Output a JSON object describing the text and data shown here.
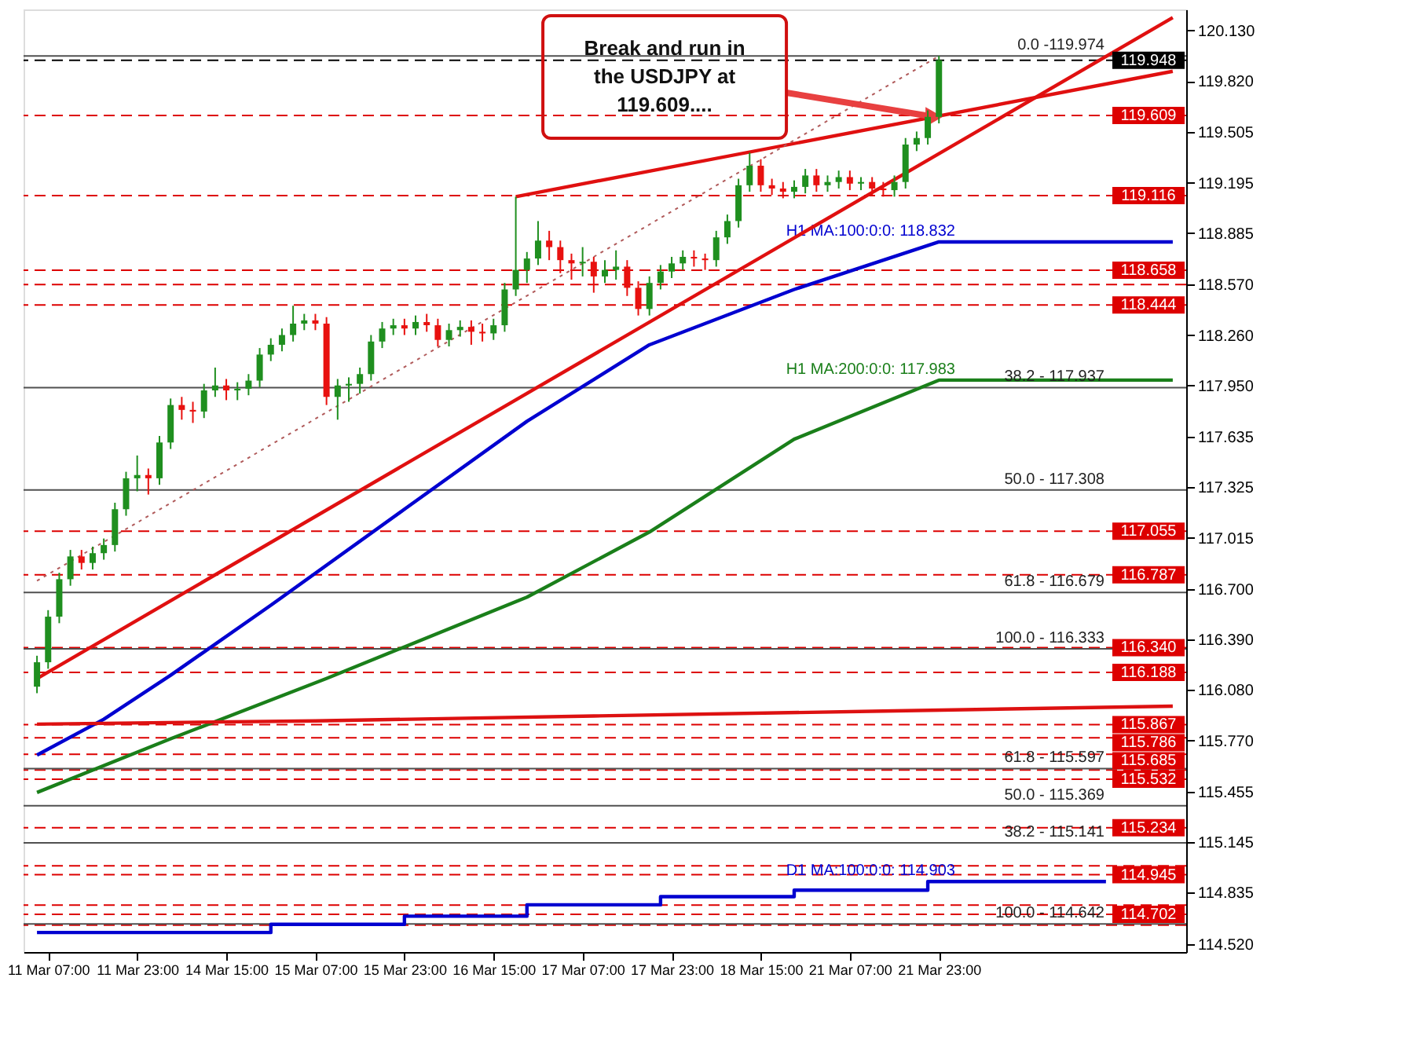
{
  "chart_data": {
    "type": "candlestick",
    "categories": [
      null,
      "11 Mar 07:00",
      null,
      null,
      null,
      null,
      null,
      null,
      null,
      "11 Mar 23:00",
      null,
      null,
      null,
      null,
      null,
      null,
      null,
      "14 Mar 15:00",
      null,
      null,
      null,
      null,
      null,
      null,
      null,
      "15 Mar 07:00",
      null,
      null,
      null,
      null,
      null,
      null,
      null,
      "15 Mar 23:00",
      null,
      null,
      null,
      null,
      null,
      null,
      null,
      "16 Mar 15:00",
      null,
      null,
      null,
      null,
      null,
      null,
      null,
      "17 Mar 07:00",
      null,
      null,
      null,
      null,
      null,
      null,
      null,
      "17 Mar 23:00",
      null,
      null,
      null,
      null,
      null,
      null,
      null,
      "18 Mar 15:00",
      null,
      null,
      null,
      null,
      null,
      null,
      null,
      "21 Mar 07:00",
      null,
      null,
      null,
      null,
      null,
      null,
      null,
      "21 Mar 23:00",
      null,
      null,
      null,
      null,
      null,
      null,
      null,
      null,
      null,
      null,
      null,
      null,
      null,
      null,
      null,
      null,
      null,
      null,
      null,
      null,
      null
    ],
    "ohlc": [
      [
        116.1,
        116.29,
        116.06,
        116.25
      ],
      [
        116.25,
        116.57,
        116.21,
        116.53
      ],
      [
        116.53,
        116.8,
        116.49,
        116.76
      ],
      [
        116.76,
        116.94,
        116.72,
        116.9
      ],
      [
        116.9,
        116.94,
        116.82,
        116.86
      ],
      [
        116.86,
        116.96,
        116.82,
        116.92
      ],
      [
        116.92,
        117.01,
        116.88,
        116.97
      ],
      [
        116.97,
        117.23,
        116.93,
        117.19
      ],
      [
        117.19,
        117.42,
        117.15,
        117.38
      ],
      [
        117.38,
        117.52,
        117.3,
        117.4
      ],
      [
        117.4,
        117.44,
        117.28,
        117.38
      ],
      [
        117.38,
        117.64,
        117.34,
        117.6
      ],
      [
        117.6,
        117.87,
        117.56,
        117.83
      ],
      [
        117.83,
        117.88,
        117.74,
        117.8
      ],
      [
        117.8,
        117.85,
        117.72,
        117.79
      ],
      [
        117.79,
        117.96,
        117.75,
        117.92
      ],
      [
        117.92,
        118.06,
        117.88,
        117.95
      ],
      [
        117.95,
        117.99,
        117.86,
        117.92
      ],
      [
        117.92,
        117.97,
        117.86,
        117.93
      ],
      [
        117.93,
        118.02,
        117.89,
        117.98
      ],
      [
        117.98,
        118.18,
        117.94,
        118.14
      ],
      [
        118.14,
        118.24,
        118.1,
        118.2
      ],
      [
        118.2,
        118.3,
        118.16,
        118.26
      ],
      [
        118.26,
        118.44,
        118.22,
        118.33
      ],
      [
        118.33,
        118.39,
        118.29,
        118.35
      ],
      [
        118.35,
        118.39,
        118.29,
        118.33
      ],
      [
        118.33,
        118.37,
        117.83,
        117.88
      ],
      [
        117.88,
        117.99,
        117.74,
        117.95
      ],
      [
        117.95,
        118.0,
        117.85,
        117.96
      ],
      [
        117.96,
        118.06,
        117.9,
        118.02
      ],
      [
        118.02,
        118.26,
        117.98,
        118.22
      ],
      [
        118.22,
        118.34,
        118.18,
        118.3
      ],
      [
        118.3,
        118.36,
        118.26,
        118.32
      ],
      [
        118.32,
        118.36,
        118.26,
        118.3
      ],
      [
        118.3,
        118.38,
        118.26,
        118.34
      ],
      [
        118.34,
        118.39,
        118.28,
        118.32
      ],
      [
        118.32,
        118.36,
        118.19,
        118.23
      ],
      [
        118.23,
        118.33,
        118.19,
        118.29
      ],
      [
        118.29,
        118.35,
        118.25,
        118.31
      ],
      [
        118.31,
        118.35,
        118.2,
        118.28
      ],
      [
        118.28,
        118.33,
        118.22,
        118.27
      ],
      [
        118.27,
        118.36,
        118.23,
        118.32
      ],
      [
        118.32,
        118.58,
        118.28,
        118.54
      ],
      [
        118.54,
        119.11,
        118.5,
        118.66
      ],
      [
        118.66,
        118.77,
        118.58,
        118.73
      ],
      [
        118.73,
        118.96,
        118.69,
        118.84
      ],
      [
        118.84,
        118.9,
        118.72,
        118.8
      ],
      [
        118.8,
        118.84,
        118.64,
        118.72
      ],
      [
        118.72,
        118.76,
        118.6,
        118.7
      ],
      [
        118.7,
        118.8,
        118.62,
        118.71
      ],
      [
        118.71,
        118.74,
        118.52,
        118.62
      ],
      [
        118.62,
        118.72,
        118.58,
        118.66
      ],
      [
        118.66,
        118.78,
        118.6,
        118.68
      ],
      [
        118.68,
        118.72,
        118.5,
        118.55
      ],
      [
        118.55,
        118.59,
        118.38,
        118.42
      ],
      [
        118.42,
        118.62,
        118.38,
        118.58
      ],
      [
        118.58,
        118.69,
        118.54,
        118.65
      ],
      [
        118.65,
        118.74,
        118.61,
        118.7
      ],
      [
        118.7,
        118.78,
        118.66,
        118.74
      ],
      [
        118.74,
        118.78,
        118.68,
        118.73
      ],
      [
        118.73,
        118.76,
        118.66,
        118.72
      ],
      [
        118.72,
        118.9,
        118.68,
        118.86
      ],
      [
        118.86,
        119.0,
        118.82,
        118.96
      ],
      [
        118.96,
        119.22,
        118.92,
        119.18
      ],
      [
        119.18,
        119.38,
        119.14,
        119.3
      ],
      [
        119.3,
        119.34,
        119.14,
        119.18
      ],
      [
        119.18,
        119.22,
        119.12,
        119.16
      ],
      [
        119.16,
        119.2,
        119.1,
        119.14
      ],
      [
        119.14,
        119.21,
        119.1,
        119.17
      ],
      [
        119.17,
        119.28,
        119.13,
        119.24
      ],
      [
        119.24,
        119.28,
        119.14,
        119.18
      ],
      [
        119.18,
        119.24,
        119.14,
        119.2
      ],
      [
        119.2,
        119.27,
        119.16,
        119.23
      ],
      [
        119.23,
        119.27,
        119.15,
        119.19
      ],
      [
        119.19,
        119.23,
        119.15,
        119.2
      ],
      [
        119.2,
        119.23,
        119.12,
        119.16
      ],
      [
        119.16,
        119.2,
        119.11,
        119.15
      ],
      [
        119.15,
        119.24,
        119.11,
        119.2
      ],
      [
        119.2,
        119.47,
        119.16,
        119.43
      ],
      [
        119.43,
        119.51,
        119.39,
        119.47
      ],
      [
        119.47,
        119.64,
        119.43,
        119.6
      ],
      [
        119.6,
        119.974,
        119.56,
        119.948
      ],
      null,
      null,
      null,
      null,
      null,
      null,
      null,
      null,
      null,
      null,
      null,
      null,
      null,
      null,
      null,
      null,
      null,
      null,
      null,
      null,
      null
    ],
    "colors": [
      "#1f8f1f",
      "#1f8f1f",
      "#1f8f1f",
      "#1f8f1f",
      "#e8110f",
      "#1f8f1f",
      "#1f8f1f",
      "#1f8f1f",
      "#1f8f1f",
      "#1f8f1f",
      "#e8110f",
      "#1f8f1f",
      "#1f8f1f",
      "#e8110f",
      "#e8110f",
      "#1f8f1f",
      "#1f8f1f",
      "#e8110f",
      "#1f8f1f",
      "#1f8f1f",
      "#1f8f1f",
      "#1f8f1f",
      "#1f8f1f",
      "#1f8f1f",
      "#1f8f1f",
      "#e8110f",
      "#e8110f",
      "#1f8f1f",
      "#1f8f1f",
      "#1f8f1f",
      "#1f8f1f",
      "#1f8f1f",
      "#1f8f1f",
      "#e8110f",
      "#1f8f1f",
      "#e8110f",
      "#e8110f",
      "#1f8f1f",
      "#1f8f1f",
      "#e8110f",
      "#e8110f",
      "#1f8f1f",
      "#1f8f1f",
      "#1f8f1f",
      "#1f8f1f",
      "#1f8f1f",
      "#e8110f",
      "#e8110f",
      "#e8110f",
      "#1f8f1f",
      "#e8110f",
      "#1f8f1f",
      "#1f8f1f",
      "#e8110f",
      "#e8110f",
      "#1f8f1f",
      "#1f8f1f",
      "#1f8f1f",
      "#1f8f1f",
      "#e8110f",
      "#e8110f",
      "#1f8f1f",
      "#1f8f1f",
      "#1f8f1f",
      "#1f8f1f",
      "#e8110f",
      "#e8110f",
      "#e8110f",
      "#1f8f1f",
      "#1f8f1f",
      "#e8110f",
      "#1f8f1f",
      "#1f8f1f",
      "#e8110f",
      "#1f8f1f",
      "#e8110f",
      "#e8110f",
      "#1f8f1f",
      "#1f8f1f",
      "#1f8f1f",
      "#1f8f1f",
      "#1f8f1f",
      null,
      null,
      null,
      null,
      null,
      null,
      null,
      null,
      null,
      null,
      null,
      null,
      null,
      null,
      null,
      null,
      null,
      null,
      null,
      null,
      null
    ],
    "series": [
      {
        "name": "H1 MA:100:0:0: 118.832",
        "type": "line",
        "color": "#0000d0",
        "values": [
          115.68,
          null,
          null,
          null,
          null,
          null,
          115.9,
          null,
          null,
          null,
          null,
          null,
          116.17,
          null,
          null,
          null,
          null,
          null,
          null,
          null,
          null,
          116.6,
          null,
          null,
          null,
          null,
          null,
          null,
          null,
          null,
          null,
          null,
          null,
          117.19,
          null,
          null,
          null,
          null,
          null,
          null,
          null,
          null,
          null,
          null,
          117.73,
          null,
          null,
          null,
          null,
          null,
          null,
          null,
          null,
          null,
          null,
          118.2,
          null,
          null,
          null,
          null,
          null,
          null,
          null,
          null,
          null,
          null,
          null,
          null,
          118.54,
          null,
          null,
          null,
          null,
          null,
          null,
          null,
          null,
          null,
          null,
          null,
          null,
          118.832,
          null,
          null,
          null,
          null,
          null,
          null,
          null,
          null,
          null,
          null,
          null,
          null,
          null,
          null,
          null,
          null,
          null,
          null,
          null,
          null,
          118.832
        ]
      },
      {
        "name": "H1 MA:200:0:0: 117.983",
        "type": "line",
        "color": "#1a7f1a",
        "values": [
          115.45,
          null,
          null,
          null,
          null,
          null,
          null,
          null,
          null,
          null,
          null,
          null,
          115.78,
          null,
          null,
          null,
          null,
          null,
          null,
          null,
          null,
          null,
          null,
          null,
          null,
          null,
          116.15,
          null,
          null,
          null,
          null,
          null,
          null,
          null,
          null,
          null,
          null,
          null,
          null,
          null,
          null,
          null,
          null,
          null,
          116.65,
          null,
          null,
          null,
          null,
          null,
          null,
          null,
          null,
          null,
          null,
          117.05,
          null,
          null,
          null,
          null,
          null,
          null,
          null,
          null,
          null,
          null,
          null,
          null,
          117.62,
          null,
          null,
          null,
          null,
          null,
          null,
          null,
          null,
          null,
          null,
          null,
          null,
          117.983,
          null,
          null,
          null,
          null,
          null,
          null,
          null,
          null,
          null,
          null,
          null,
          null,
          null,
          null,
          null,
          null,
          null,
          null,
          null,
          null,
          117.983
        ]
      },
      {
        "type": "line",
        "color": "#dd1111",
        "values": [
          115.87,
          null,
          null,
          null,
          null,
          null,
          null,
          null,
          null,
          null,
          null,
          null,
          null,
          null,
          null,
          null,
          null,
          null,
          null,
          null,
          null,
          null,
          null,
          null,
          null,
          115.89,
          null,
          null,
          null,
          null,
          null,
          null,
          null,
          null,
          null,
          null,
          null,
          null,
          null,
          null,
          null,
          null,
          null,
          null,
          null,
          null,
          null,
          null,
          null,
          null,
          115.92,
          null,
          null,
          null,
          null,
          null,
          null,
          null,
          null,
          null,
          null,
          null,
          null,
          null,
          null,
          null,
          null,
          null,
          null,
          null,
          null,
          null,
          null,
          null,
          null,
          null,
          115.95,
          null,
          null,
          null,
          null,
          null,
          null,
          null,
          null,
          null,
          null,
          null,
          null,
          null,
          null,
          null,
          null,
          null,
          null,
          null,
          null,
          null,
          null,
          null,
          null,
          null,
          115.98
        ]
      },
      {
        "name": "D1 MA:100:0:0: 114.903",
        "type": "step",
        "color": "#0000d0",
        "values": [
          114.59,
          null,
          null,
          null,
          null,
          null,
          null,
          null,
          null,
          null,
          null,
          null,
          null,
          null,
          null,
          null,
          null,
          null,
          null,
          null,
          null,
          114.64,
          null,
          null,
          null,
          null,
          null,
          null,
          null,
          null,
          null,
          null,
          null,
          114.69,
          null,
          null,
          null,
          null,
          null,
          null,
          null,
          null,
          null,
          null,
          114.76,
          null,
          null,
          null,
          null,
          null,
          null,
          null,
          null,
          null,
          null,
          null,
          114.81,
          null,
          null,
          null,
          null,
          null,
          null,
          null,
          null,
          null,
          null,
          null,
          114.85,
          null,
          null,
          null,
          null,
          null,
          null,
          null,
          null,
          null,
          null,
          null,
          114.903,
          null,
          null,
          null,
          null,
          null,
          null,
          null,
          null,
          null,
          null,
          null,
          null,
          null,
          null,
          null,
          114.903,
          null,
          null,
          null,
          null,
          null,
          null
        ]
      },
      {
        "type": "line",
        "color": "#e01010",
        "values": [
          116.15,
          null,
          null,
          null,
          null,
          null,
          null,
          null,
          null,
          null,
          null,
          null,
          null,
          null,
          null,
          null,
          null,
          null,
          null,
          null,
          null,
          null,
          null,
          null,
          null,
          null,
          null,
          null,
          null,
          null,
          null,
          null,
          null,
          null,
          null,
          null,
          null,
          null,
          null,
          null,
          null,
          null,
          null,
          null,
          null,
          null,
          null,
          null,
          null,
          null,
          null,
          null,
          null,
          null,
          null,
          null,
          null,
          null,
          null,
          null,
          null,
          null,
          null,
          null,
          null,
          null,
          null,
          null,
          null,
          null,
          null,
          null,
          null,
          null,
          null,
          null,
          null,
          null,
          null,
          null,
          null,
          null,
          null,
          null,
          null,
          null,
          null,
          null,
          null,
          null,
          null,
          null,
          null,
          null,
          null,
          null,
          null,
          null,
          null,
          null,
          null,
          null,
          120.21
        ]
      },
      {
        "type": "line",
        "color": "#e01010",
        "values": [
          null,
          null,
          null,
          null,
          null,
          null,
          null,
          null,
          null,
          null,
          null,
          null,
          null,
          null,
          null,
          null,
          null,
          null,
          null,
          null,
          null,
          null,
          null,
          null,
          null,
          null,
          null,
          null,
          null,
          null,
          null,
          null,
          null,
          null,
          null,
          null,
          null,
          null,
          null,
          null,
          null,
          null,
          null,
          119.11,
          null,
          null,
          null,
          null,
          null,
          null,
          null,
          null,
          null,
          null,
          null,
          null,
          null,
          null,
          null,
          null,
          null,
          null,
          null,
          null,
          null,
          null,
          null,
          null,
          null,
          null,
          null,
          null,
          null,
          null,
          null,
          null,
          null,
          null,
          null,
          null,
          null,
          null,
          null,
          null,
          null,
          null,
          null,
          null,
          null,
          null,
          null,
          null,
          null,
          null,
          null,
          null,
          null,
          null,
          null,
          null,
          null,
          null,
          119.88
        ]
      },
      {
        "type": "line",
        "color": "#b05a5a",
        "line_style": "dotted",
        "values": [
          116.75,
          null,
          null,
          null,
          null,
          null,
          null,
          null,
          null,
          null,
          null,
          null,
          null,
          null,
          null,
          null,
          null,
          null,
          null,
          null,
          null,
          null,
          null,
          null,
          null,
          null,
          null,
          null,
          null,
          null,
          null,
          null,
          null,
          null,
          null,
          null,
          null,
          null,
          null,
          null,
          null,
          null,
          null,
          null,
          null,
          null,
          null,
          null,
          null,
          null,
          null,
          null,
          null,
          null,
          null,
          null,
          null,
          null,
          null,
          null,
          null,
          null,
          null,
          null,
          null,
          null,
          null,
          null,
          null,
          null,
          null,
          null,
          null,
          null,
          null,
          null,
          null,
          null,
          null,
          null,
          null,
          119.974,
          null,
          null,
          null,
          null,
          null,
          null,
          null,
          null,
          null,
          null,
          null,
          null,
          null,
          null,
          null,
          null,
          null,
          null,
          null,
          null,
          null
        ]
      }
    ],
    "ylim": [
      114.47,
      120.26
    ],
    "yticks": [
      {
        "value": 120.13,
        "label": "120.130"
      },
      {
        "value": 119.82,
        "label": "119.820"
      },
      {
        "value": 119.505,
        "label": "119.505"
      },
      {
        "value": 119.195,
        "label": "119.195"
      },
      {
        "value": 118.885,
        "label": "118.885"
      },
      {
        "value": 118.57,
        "label": "118.570"
      },
      {
        "value": 118.26,
        "label": "118.260"
      },
      {
        "value": 117.95,
        "label": "117.950"
      },
      {
        "value": 117.635,
        "label": "117.635"
      },
      {
        "value": 117.325,
        "label": "117.325"
      },
      {
        "value": 117.015,
        "label": "117.015"
      },
      {
        "value": 116.7,
        "label": "116.700"
      },
      {
        "value": 116.39,
        "label": "116.390"
      },
      {
        "value": 116.08,
        "label": "116.080"
      },
      {
        "value": 115.77,
        "label": "115.770"
      },
      {
        "value": 115.455,
        "label": "115.455"
      },
      {
        "value": 115.145,
        "label": "115.145"
      },
      {
        "value": 114.835,
        "label": "114.835"
      },
      {
        "value": 114.52,
        "label": "114.520"
      }
    ],
    "ref_lines": [
      {
        "axis": "y",
        "value": 119.948,
        "label": "119.948",
        "color": "#000000",
        "line_style": "dashed"
      },
      {
        "axis": "y",
        "value": 119.609,
        "label": "119.609",
        "color": "#dd0000",
        "line_style": "dashed"
      },
      {
        "axis": "y",
        "value": 119.116,
        "label": "119.116",
        "color": "#dd0000",
        "line_style": "dashed"
      },
      {
        "axis": "y",
        "value": 118.658,
        "label": "118.658",
        "color": "#dd0000",
        "line_style": "dashed"
      },
      {
        "axis": "y",
        "value": 118.57,
        "color": "#dd0000",
        "line_style": "dashed"
      },
      {
        "axis": "y",
        "value": 118.444,
        "label": "118.444",
        "color": "#dd0000",
        "line_style": "dashed"
      },
      {
        "axis": "y",
        "value": 117.055,
        "label": "117.055",
        "color": "#dd0000",
        "line_style": "dashed"
      },
      {
        "axis": "y",
        "value": 116.787,
        "label": "116.787",
        "color": "#dd0000",
        "line_style": "dashed"
      },
      {
        "axis": "y",
        "value": 116.34,
        "label": "116.340",
        "color": "#dd0000",
        "line_style": "dashed"
      },
      {
        "axis": "y",
        "value": 116.188,
        "label": "116.188",
        "color": "#dd0000",
        "line_style": "dashed"
      },
      {
        "axis": "y",
        "value": 115.867,
        "label": "115.867",
        "color": "#dd0000",
        "line_style": "dashed"
      },
      {
        "axis": "y",
        "value": 115.786,
        "label": "115.786",
        "color": "#dd0000",
        "line_style": "dashed"
      },
      {
        "axis": "y",
        "value": 115.685,
        "label": "115.685",
        "color": "#dd0000",
        "line_style": "dashed"
      },
      {
        "axis": "y",
        "value": 115.588,
        "color": "#dd0000",
        "line_style": "dashed"
      },
      {
        "axis": "y",
        "value": 115.532,
        "label": "115.532",
        "color": "#dd0000",
        "line_style": "dashed"
      },
      {
        "axis": "y",
        "value": 115.234,
        "label": "115.234",
        "color": "#dd0000",
        "line_style": "dashed"
      },
      {
        "axis": "y",
        "value": 115.0,
        "color": "#dd0000",
        "line_style": "dashed"
      },
      {
        "axis": "y",
        "value": 114.945,
        "label": "114.945",
        "color": "#dd0000",
        "line_style": "dashed"
      },
      {
        "axis": "y",
        "value": 114.758,
        "color": "#dd0000",
        "line_style": "dashed"
      },
      {
        "axis": "y",
        "value": 114.702,
        "label": "114.702",
        "color": "#dd0000",
        "line_style": "dashed"
      },
      {
        "axis": "y",
        "value": 114.635,
        "color": "#dd0000",
        "line_style": "dashed"
      },
      {
        "axis": "y",
        "value": 119.974,
        "color": "#505050",
        "line_style": "solid"
      },
      {
        "axis": "y",
        "value": 117.937,
        "color": "#505050",
        "line_style": "solid"
      },
      {
        "axis": "y",
        "value": 117.308,
        "color": "#505050",
        "line_style": "solid"
      },
      {
        "axis": "y",
        "value": 116.679,
        "color": "#505050",
        "line_style": "solid"
      },
      {
        "axis": "y",
        "value": 116.333,
        "color": "#505050",
        "line_style": "solid"
      },
      {
        "axis": "y",
        "value": 115.597,
        "color": "#505050",
        "line_style": "solid"
      },
      {
        "axis": "y",
        "value": 115.369,
        "color": "#505050",
        "line_style": "solid"
      },
      {
        "axis": "y",
        "value": 115.141,
        "color": "#505050",
        "line_style": "solid"
      },
      {
        "axis": "y",
        "value": 114.642,
        "color": "#505050",
        "line_style": "solid"
      }
    ],
    "annotations": [
      "Break and run in\nthe USDJPY at\n119.609....",
      {
        "text": "0.0 -119.974",
        "y": 119.974
      },
      {
        "text": "38.2 - 117.937",
        "y": 117.937
      },
      {
        "text": "50.0 - 117.308",
        "y": 117.308
      },
      {
        "text": "61.8 - 116.679",
        "y": 116.679
      },
      {
        "text": "100.0 - 116.333",
        "y": 116.333
      },
      {
        "text": "61.8 - 115.597",
        "y": 115.597
      },
      {
        "text": "50.0 - 115.369",
        "y": 115.369
      },
      {
        "text": "38.2 - 115.141",
        "y": 115.141
      },
      {
        "text": "100.0 - 114.642",
        "y": 114.642
      }
    ]
  }
}
